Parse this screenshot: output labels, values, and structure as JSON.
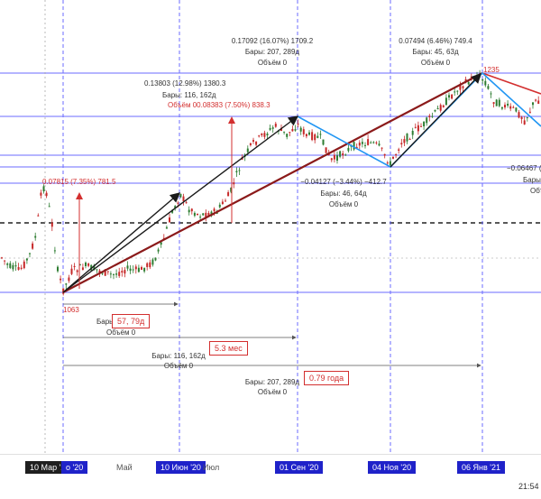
{
  "x_axis": {
    "ticks": [
      {
        "label": "10 Мар '20",
        "style": "dark"
      },
      {
        "label": "о '20",
        "style": "blue"
      },
      {
        "label": "Май",
        "style": "plain"
      },
      {
        "label": "10 Июн '20",
        "style": "blue"
      },
      {
        "label": "Июл",
        "style": "plain"
      },
      {
        "label": "01 Сен '20",
        "style": "blue"
      },
      {
        "label": "04 Ноя '20",
        "style": "blue"
      },
      {
        "label": "06 Янв '21",
        "style": "blue"
      }
    ],
    "clock": "21:54"
  },
  "annotations": {
    "swing1": {
      "line1": "0.07815 (7.35%) 781.5"
    },
    "swing2": {
      "line1": "0.13803 (12.98%) 1380.3",
      "line2": "Бары: 116, 162д",
      "line3": "Объём 00.08383 (7.50%) 838.3"
    },
    "swing3": {
      "line1": "0.17092 (16.07%) 1709.2",
      "line2": "Бары: 207, 289д",
      "line3": "Объём 0"
    },
    "swing4": {
      "line1": "0.07494 (6.46%) 749.4",
      "line2": "Бары: 45, 63д",
      "line3": "Объём 0"
    },
    "swing5": {
      "line1": "−0.04127 (−3.44%) −412.7",
      "line2": "Бары: 46, 64д",
      "line3": "Объём 0"
    },
    "swing6": {
      "line1": "−0.06467 (−5",
      "line2": "Бары:",
      "line3": "Объ"
    },
    "low_price": "1063",
    "high_price": "1235",
    "range1": {
      "bars_prefix": "Бары: ",
      "bars_box": "57, 79д",
      "volume": "Объём 0"
    },
    "range2": {
      "bars": "Бары: 116, 162д",
      "volume": "Объём 0",
      "duration": "5.3 мес"
    },
    "range3": {
      "bars": "Бары: 207, 289д",
      "volume": "Объём 0",
      "duration": "0.79 года"
    }
  },
  "colors": {
    "grid_line": "#6b6bff",
    "trend_line": "#8b1a1a",
    "swing_line": "#2196f3",
    "arrow": "#1a1a1a",
    "red_line": "#d32f2f",
    "candle_up": "#2e7d32",
    "candle_down": "#c62828"
  }
}
